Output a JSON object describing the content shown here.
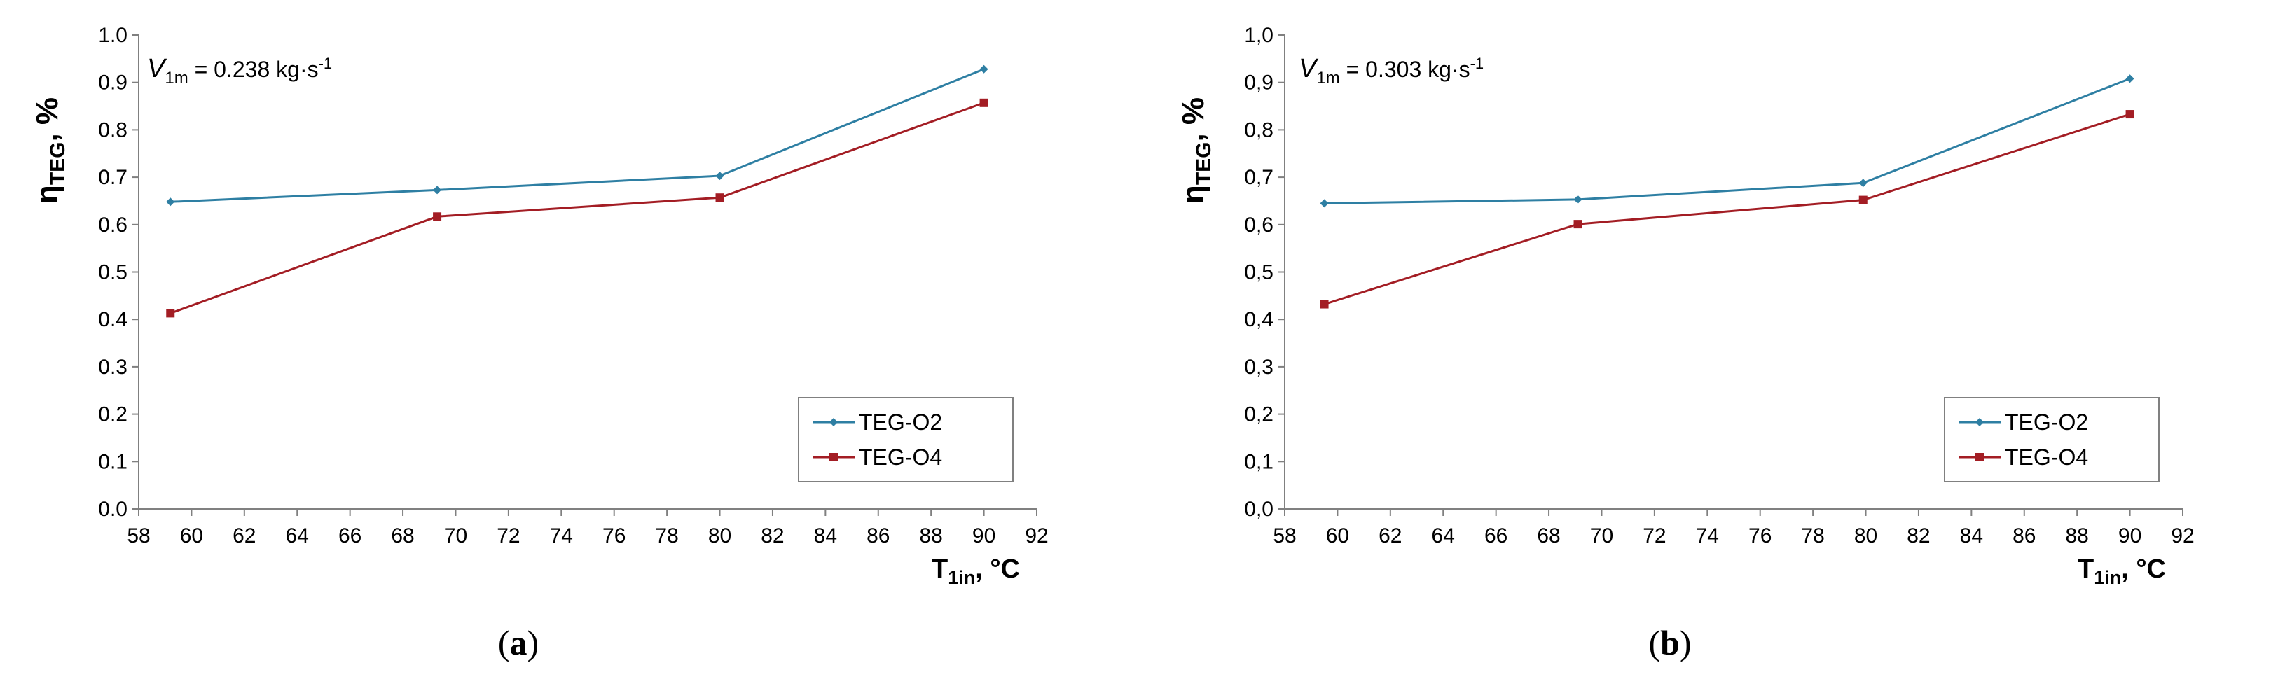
{
  "chart_data": [
    {
      "type": "line",
      "panel": "a",
      "caption_letter": "a",
      "annotation": {
        "symbol": "V",
        "subscript": "1m",
        "equals_value": " = 0.238 kg·s",
        "superscript": "-1"
      },
      "ylabel": {
        "symbol": "η",
        "subscript": "TEG",
        "unit": ", %"
      },
      "xlabel": {
        "symbol": "T",
        "subscript": "1in",
        "unit": ", °C"
      },
      "xlim": [
        58,
        92
      ],
      "xticks": [
        "58",
        "60",
        "62",
        "64",
        "66",
        "68",
        "70",
        "72",
        "74",
        "76",
        "78",
        "80",
        "82",
        "84",
        "86",
        "88",
        "90",
        "92"
      ],
      "ylim": [
        0,
        1.0
      ],
      "yticks": [
        "0.0",
        "0.1",
        "0.2",
        "0.3",
        "0.4",
        "0.5",
        "0.6",
        "0.7",
        "0.8",
        "0.9",
        "1.0"
      ],
      "legend_position": "bottom-right",
      "series": [
        {
          "name": "TEG-O2",
          "color": "#2e7fa3",
          "marker": "diamond",
          "x": [
            59.2,
            69.3,
            80.0,
            90.0
          ],
          "y": [
            0.648,
            0.673,
            0.703,
            0.928
          ]
        },
        {
          "name": "TEG-O4",
          "color": "#a31d24",
          "marker": "square",
          "x": [
            59.2,
            69.3,
            80.0,
            90.0
          ],
          "y": [
            0.413,
            0.617,
            0.657,
            0.857
          ]
        }
      ]
    },
    {
      "type": "line",
      "panel": "b",
      "caption_letter": "b",
      "annotation": {
        "symbol": "V",
        "subscript": "1m",
        "equals_value": " = 0.303 kg·s",
        "superscript": "-1"
      },
      "ylabel": {
        "symbol": "η",
        "subscript": "TEG",
        "unit": ", %"
      },
      "xlabel": {
        "symbol": "T",
        "subscript": "1in",
        "unit": ", °C"
      },
      "xlim": [
        58,
        92
      ],
      "xticks": [
        "58",
        "60",
        "62",
        "64",
        "66",
        "68",
        "70",
        "72",
        "74",
        "76",
        "78",
        "80",
        "82",
        "84",
        "86",
        "88",
        "90",
        "92"
      ],
      "ylim": [
        0,
        1.0
      ],
      "yticks": [
        "0,0",
        "0,1",
        "0,2",
        "0,3",
        "0,4",
        "0,5",
        "0,6",
        "0,7",
        "0,8",
        "0,9",
        "1,0"
      ],
      "legend_position": "bottom-right",
      "series": [
        {
          "name": "TEG-O2",
          "color": "#2e7fa3",
          "marker": "diamond",
          "x": [
            59.5,
            69.1,
            79.9,
            90.0
          ],
          "y": [
            0.645,
            0.653,
            0.688,
            0.908
          ]
        },
        {
          "name": "TEG-O4",
          "color": "#a31d24",
          "marker": "square",
          "x": [
            59.5,
            69.1,
            79.9,
            90.0
          ],
          "y": [
            0.432,
            0.601,
            0.652,
            0.833
          ]
        }
      ]
    }
  ]
}
